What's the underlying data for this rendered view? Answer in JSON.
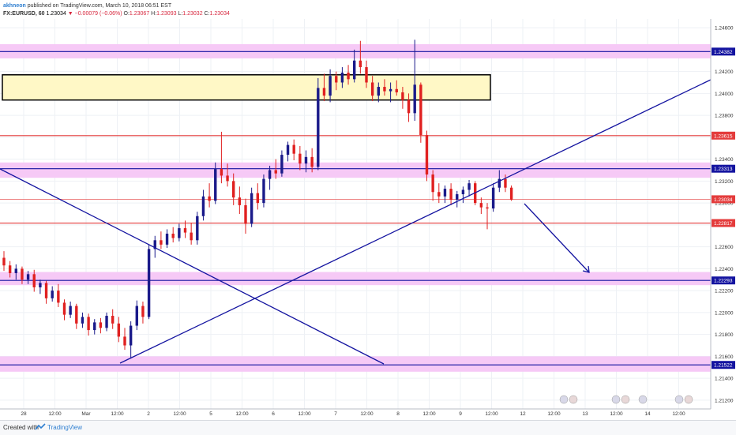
{
  "header": {
    "author": "akhneon",
    "published": "published on TradingView.com, March 10, 2018 06:51 EST",
    "symbol": "FX:EURUSD, 60",
    "last": "1.23034",
    "change": "−0.00079 (−0.06%)",
    "o_label": "O:",
    "o": "1.23067",
    "h_label": "H:",
    "h": "1.23093",
    "l_label": "L:",
    "l": "1.23032",
    "c_label": "C:",
    "c": "1.23034"
  },
  "footer": {
    "created": "Created with",
    "brand": "TradingView"
  },
  "colors": {
    "zone_pink": "#f6c9f6",
    "zone_yellow": "#fff8c6",
    "line_blue": "#1414a0",
    "line_red": "#e43b3b",
    "candle_up": "#1a1a8a",
    "candle_down": "#e02020",
    "grid": "#eef1f5"
  },
  "chart_data": {
    "type": "candlestick",
    "y_axis": {
      "min": 1.2112,
      "max": 1.2468,
      "ticks": [
        "1.21200",
        "1.21400",
        "1.21600",
        "1.21800",
        "1.22000",
        "1.22200",
        "1.22400",
        "1.22600",
        "1.22800",
        "1.23000",
        "1.23200",
        "1.23400",
        "1.23600",
        "1.23800",
        "1.24000",
        "1.24200",
        "1.24400",
        "1.24600"
      ]
    },
    "x_axis": {
      "ticks": [
        "28",
        "12:00",
        "Mar",
        "12:00",
        "2",
        "12:00",
        "5",
        "12:00",
        "6",
        "12:00",
        "7",
        "12:00",
        "8",
        "12:00",
        "9",
        "12:00",
        "12",
        "12:00",
        "13",
        "12:00",
        "14",
        "12:00"
      ]
    },
    "levels": [
      {
        "name": "resistance-high",
        "value": 1.24382,
        "label": "1.24382",
        "zone": [
          1.2432,
          1.2445
        ]
      },
      {
        "name": "resistance-mid",
        "value": 1.23615,
        "label": "1.23615"
      },
      {
        "name": "resistance-low",
        "value": 1.23313,
        "label": "1.23313",
        "zone": [
          1.2323,
          1.2337
        ]
      },
      {
        "name": "current-price",
        "value": 1.23034,
        "label": "1.23034"
      },
      {
        "name": "support-high",
        "value": 1.22817,
        "label": "1.22817"
      },
      {
        "name": "support-mid",
        "value": 1.22293,
        "label": "1.22293",
        "zone": [
          1.2225,
          1.2237
        ]
      },
      {
        "name": "support-low",
        "value": 1.21522,
        "label": "1.21522",
        "zone": [
          1.2146,
          1.216
        ]
      }
    ],
    "supply_zone": [
      1.2394,
      1.2417
    ],
    "trendlines": [
      "ascending-trendline",
      "descending-trendline"
    ],
    "projection": "down-arrow",
    "candles": [
      [
        1.225,
        1.2256,
        1.2238,
        1.2243
      ],
      [
        1.2243,
        1.2247,
        1.2232,
        1.2236
      ],
      [
        1.2236,
        1.2244,
        1.223,
        1.224
      ],
      [
        1.224,
        1.2242,
        1.2226,
        1.223
      ],
      [
        1.223,
        1.2238,
        1.2226,
        1.2235
      ],
      [
        1.2235,
        1.2239,
        1.2219,
        1.2223
      ],
      [
        1.2223,
        1.223,
        1.2217,
        1.2227
      ],
      [
        1.2227,
        1.2229,
        1.2208,
        1.2213
      ],
      [
        1.2213,
        1.2224,
        1.221,
        1.222
      ],
      [
        1.222,
        1.2226,
        1.2205,
        1.2209
      ],
      [
        1.2209,
        1.2212,
        1.2193,
        1.2198
      ],
      [
        1.2198,
        1.221,
        1.2195,
        1.2206
      ],
      [
        1.2206,
        1.2208,
        1.2185,
        1.219
      ],
      [
        1.219,
        1.22,
        1.2186,
        1.2196
      ],
      [
        1.2196,
        1.2199,
        1.2179,
        1.2184
      ],
      [
        1.2184,
        1.2194,
        1.218,
        1.2191
      ],
      [
        1.2191,
        1.2195,
        1.2181,
        1.2186
      ],
      [
        1.2186,
        1.22,
        1.2183,
        1.2197
      ],
      [
        1.2197,
        1.2203,
        1.2185,
        1.219
      ],
      [
        1.219,
        1.2196,
        1.2173,
        1.2178
      ],
      [
        1.2178,
        1.2186,
        1.2166,
        1.217
      ],
      [
        1.217,
        1.2192,
        1.2158,
        1.2188
      ],
      [
        1.2188,
        1.2211,
        1.2184,
        1.2206
      ],
      [
        1.2206,
        1.221,
        1.219,
        1.2196
      ],
      [
        1.2196,
        1.2262,
        1.2194,
        1.2258
      ],
      [
        1.2258,
        1.227,
        1.225,
        1.2266
      ],
      [
        1.2266,
        1.2274,
        1.2258,
        1.2262
      ],
      [
        1.2262,
        1.2276,
        1.2259,
        1.2272
      ],
      [
        1.2272,
        1.2278,
        1.2264,
        1.2268
      ],
      [
        1.2268,
        1.2281,
        1.2265,
        1.2277
      ],
      [
        1.2277,
        1.2284,
        1.2268,
        1.2273
      ],
      [
        1.2273,
        1.2282,
        1.2262,
        1.2266
      ],
      [
        1.2266,
        1.2292,
        1.2262,
        1.2288
      ],
      [
        1.2288,
        1.2312,
        1.2284,
        1.2306
      ],
      [
        1.2306,
        1.2318,
        1.2296,
        1.2302
      ],
      [
        1.2302,
        1.2337,
        1.2299,
        1.2331
      ],
      [
        1.2331,
        1.2365,
        1.2318,
        1.2325
      ],
      [
        1.2325,
        1.2336,
        1.2315,
        1.232
      ],
      [
        1.232,
        1.2327,
        1.2298,
        1.2305
      ],
      [
        1.2305,
        1.2315,
        1.229,
        1.2298
      ],
      [
        1.2298,
        1.2304,
        1.2272,
        1.2281
      ],
      [
        1.2281,
        1.2314,
        1.2278,
        1.2309
      ],
      [
        1.2309,
        1.2318,
        1.2294,
        1.23
      ],
      [
        1.23,
        1.2326,
        1.2296,
        1.2322
      ],
      [
        1.2322,
        1.2334,
        1.2312,
        1.233
      ],
      [
        1.233,
        1.234,
        1.2322,
        1.2327
      ],
      [
        1.2327,
        1.2348,
        1.2324,
        1.2344
      ],
      [
        1.2344,
        1.2356,
        1.2338,
        1.2353
      ],
      [
        1.2353,
        1.2358,
        1.2339,
        1.2345
      ],
      [
        1.2345,
        1.2352,
        1.233,
        1.2336
      ],
      [
        1.2336,
        1.2348,
        1.2328,
        1.2342
      ],
      [
        1.2342,
        1.235,
        1.2328,
        1.2333
      ],
      [
        1.2333,
        1.2414,
        1.233,
        1.2405
      ],
      [
        1.2405,
        1.2418,
        1.2393,
        1.2398
      ],
      [
        1.2398,
        1.2422,
        1.2392,
        1.2416
      ],
      [
        1.2416,
        1.242,
        1.2403,
        1.241
      ],
      [
        1.241,
        1.2424,
        1.2405,
        1.2419
      ],
      [
        1.2419,
        1.2426,
        1.2408,
        1.2413
      ],
      [
        1.2413,
        1.244,
        1.241,
        1.243
      ],
      [
        1.243,
        1.2448,
        1.2418,
        1.2424
      ],
      [
        1.2424,
        1.243,
        1.2405,
        1.241
      ],
      [
        1.241,
        1.2416,
        1.2393,
        1.2398
      ],
      [
        1.2398,
        1.241,
        1.2392,
        1.2406
      ],
      [
        1.2406,
        1.2413,
        1.2398,
        1.2402
      ],
      [
        1.2402,
        1.241,
        1.2392,
        1.2404
      ],
      [
        1.2404,
        1.2412,
        1.2398,
        1.2401
      ],
      [
        1.2401,
        1.2406,
        1.2386,
        1.2394
      ],
      [
        1.2394,
        1.24,
        1.2374,
        1.2382
      ],
      [
        1.2382,
        1.2449,
        1.2375,
        1.2408
      ],
      [
        1.2408,
        1.241,
        1.2355,
        1.2362
      ],
      [
        1.2362,
        1.2366,
        1.232,
        1.2326
      ],
      [
        1.2326,
        1.233,
        1.2302,
        1.231
      ],
      [
        1.231,
        1.2318,
        1.23,
        1.2306
      ],
      [
        1.2306,
        1.2316,
        1.23,
        1.2313
      ],
      [
        1.2313,
        1.2318,
        1.2298,
        1.2303
      ],
      [
        1.2303,
        1.2311,
        1.2296,
        1.2308
      ],
      [
        1.2308,
        1.2315,
        1.23,
        1.2312
      ],
      [
        1.2312,
        1.2321,
        1.2306,
        1.2318
      ],
      [
        1.2318,
        1.232,
        1.2298,
        1.23
      ],
      [
        1.23,
        1.2305,
        1.229,
        1.2296
      ],
      [
        1.2296,
        1.23,
        1.2276,
        1.2295
      ],
      [
        1.2295,
        1.2318,
        1.2292,
        1.2314
      ],
      [
        1.2314,
        1.233,
        1.231,
        1.2322
      ],
      [
        1.2322,
        1.2326,
        1.231,
        1.2314
      ],
      [
        1.2314,
        1.2316,
        1.2302,
        1.2303
      ]
    ]
  }
}
